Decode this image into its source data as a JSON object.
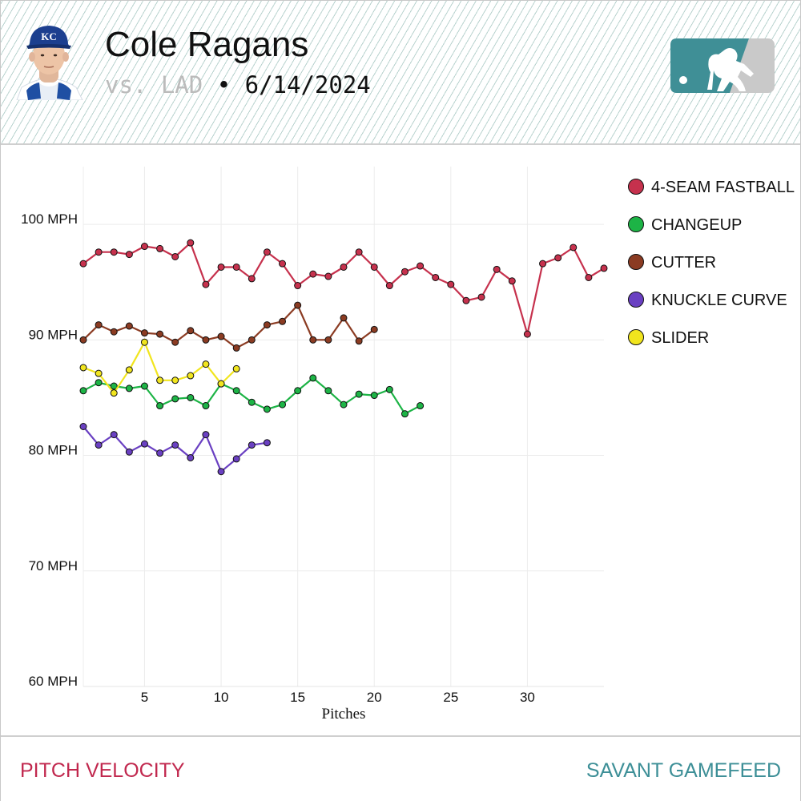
{
  "header": {
    "player_name": "Cole Ragans",
    "opponent": "vs. LAD",
    "separator": "•",
    "date": "6/14/2024",
    "team_logo": "KC",
    "brand_logo_icon": "mlb-logo-icon",
    "brand_color": "#3f8f96"
  },
  "footer": {
    "left_label": "PITCH VELOCITY",
    "right_label": "SAVANT GAMEFEED"
  },
  "chart_data": {
    "type": "line",
    "xlabel": "Pitches",
    "ylabel": "",
    "xlim": [
      1,
      35
    ],
    "ylim": [
      60,
      105
    ],
    "x_ticks": [
      5,
      10,
      15,
      20,
      25,
      30
    ],
    "y_ticks": [
      60,
      70,
      80,
      90,
      100
    ],
    "y_tick_labels": [
      "60 MPH",
      "70 MPH",
      "80 MPH",
      "90 MPH",
      "100 MPH"
    ],
    "grid": true,
    "legend_position": "right",
    "series": [
      {
        "name": "4-SEAM FASTBALL",
        "color": "#c6314d",
        "values": [
          96.6,
          97.6,
          97.6,
          97.4,
          98.1,
          97.9,
          97.2,
          98.4,
          94.8,
          96.3,
          96.3,
          95.3,
          97.6,
          96.6,
          94.7,
          95.7,
          95.5,
          96.3,
          97.6,
          96.3,
          94.7,
          95.9,
          96.4,
          95.4,
          94.8,
          93.4,
          93.7,
          96.1,
          95.1,
          90.5,
          96.6,
          97.1,
          98.0,
          95.4,
          96.2
        ]
      },
      {
        "name": "CHANGEUP",
        "color": "#1db446",
        "values": [
          85.6,
          86.3,
          86.0,
          85.8,
          86.0,
          84.3,
          84.9,
          85.0,
          84.3,
          86.2,
          85.6,
          84.6,
          84.0,
          84.4,
          85.6,
          86.7,
          85.6,
          84.4,
          85.3,
          85.2,
          85.7,
          83.6,
          84.3
        ]
      },
      {
        "name": "CUTTER",
        "color": "#8b3b22",
        "values": [
          90.0,
          91.3,
          90.7,
          91.2,
          90.6,
          90.5,
          89.8,
          90.8,
          90.0,
          90.3,
          89.3,
          90.0,
          91.3,
          91.6,
          93.0,
          90.0,
          90.0,
          91.9,
          89.9,
          90.9
        ]
      },
      {
        "name": "KNUCKLE CURVE",
        "color": "#6a40c2",
        "values": [
          82.5,
          80.9,
          81.8,
          80.3,
          81.0,
          80.2,
          80.9,
          79.8,
          81.8,
          78.6,
          79.7,
          80.9,
          81.1
        ]
      },
      {
        "name": "SLIDER",
        "color": "#f1e51e",
        "values": [
          87.6,
          87.1,
          85.4,
          87.4,
          89.8,
          86.5,
          86.5,
          86.9,
          87.9,
          86.2,
          87.5
        ]
      }
    ]
  }
}
